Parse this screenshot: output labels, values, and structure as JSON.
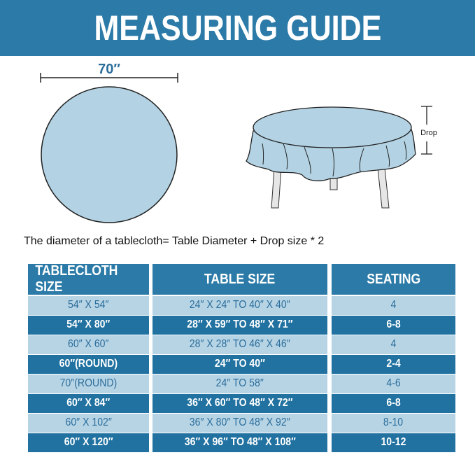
{
  "title": "MEASURING GUIDE",
  "diagram": {
    "diameter_label": "70″",
    "drop_label": "Drop"
  },
  "formula": "The diameter of a tablecloth= Table Diameter + Drop size * 2",
  "colors": {
    "banner": "#2b7aa7",
    "dark_row": "#2172a1",
    "light_row": "#b7d4e5",
    "cloth": "#b3d3e4"
  },
  "table": {
    "headers": [
      "TABLECLOTH SIZE",
      "TABLE SIZE",
      "SEATING"
    ],
    "rows": [
      [
        "54″ X 54″",
        "24″ X 24″ TO 40″ X 40″",
        "4"
      ],
      [
        "54″ X 80″",
        "28″ X 59″ TO 48″ X 71″",
        "6-8"
      ],
      [
        "60″ X 60″",
        "28″ X 28″ TO 46″ X 46″",
        "4"
      ],
      [
        "60″(ROUND)",
        "24″ TO 40″",
        "2-4"
      ],
      [
        "70″(ROUND)",
        "24″ TO 58″",
        "4-6"
      ],
      [
        "60″ X 84″",
        "36″ X 60″ TO 48″ X 72″",
        "6-8"
      ],
      [
        "60″ X 102″",
        "36″ X 80″ TO 48″ X 92″",
        "8-10"
      ],
      [
        "60″ X 120″",
        "36″ X 96″ TO 48″ X 108″",
        "10-12"
      ]
    ]
  }
}
